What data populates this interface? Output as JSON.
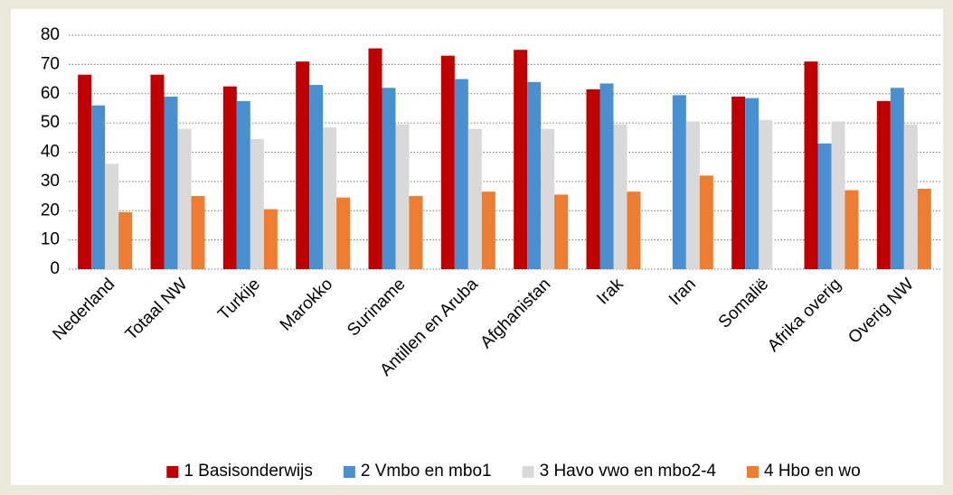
{
  "chart_data": {
    "type": "bar",
    "categories": [
      "Nederland",
      "Totaal NW",
      "Turkije",
      "Marokko",
      "Suriname",
      "Antillen en Aruba",
      "Afghanistan",
      "Irak",
      "Iran",
      "Somalië",
      "Afrika overig",
      "Overig NW"
    ],
    "series": [
      {
        "name": "1 Basisonderwijs",
        "color": "#c00000",
        "values": [
          66.5,
          66.5,
          62.5,
          71,
          75.5,
          73,
          75,
          61.5,
          null,
          59,
          71,
          57.5
        ]
      },
      {
        "name": "2 Vmbo en mbo1",
        "color": "#4a90d0",
        "values": [
          56,
          59,
          57.5,
          63,
          62,
          65,
          64,
          63.5,
          59.5,
          58.5,
          43,
          62
        ]
      },
      {
        "name": "3 Havo vwo en mbo2-4",
        "color": "#d9d9d9",
        "values": [
          36,
          48,
          44.5,
          48.5,
          49.5,
          48,
          48,
          49.5,
          50.5,
          51,
          50.5,
          49.5
        ]
      },
      {
        "name": "4 Hbo en wo",
        "color": "#ed7d31",
        "values": [
          19.5,
          25,
          20.5,
          24.5,
          25,
          26.5,
          25.5,
          26.5,
          32,
          null,
          27,
          27.5
        ]
      }
    ],
    "ylim": [
      0,
      80
    ],
    "yticks": [
      0,
      10,
      20,
      30,
      40,
      50,
      60,
      70,
      80
    ],
    "grid": true,
    "legend": "bottom"
  }
}
